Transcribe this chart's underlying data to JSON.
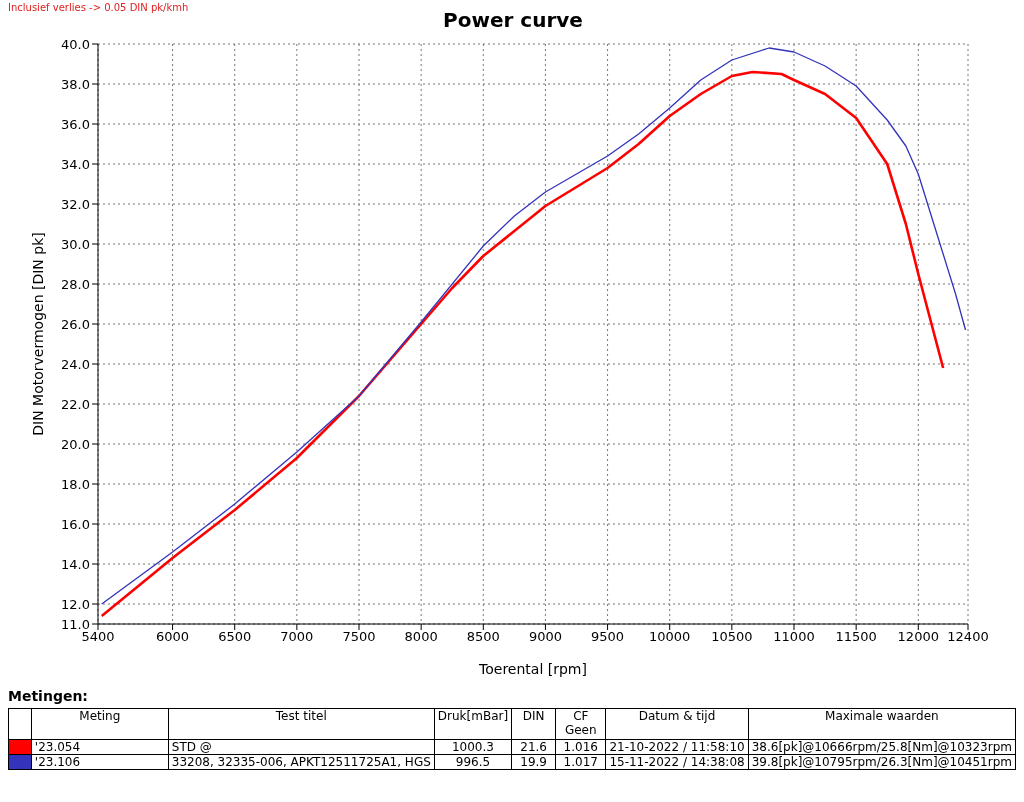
{
  "chart_data": {
    "type": "line",
    "title": "Power curve",
    "xlabel": "Toerental [rpm]",
    "ylabel": "DIN Motorvermogen [DIN pk]",
    "xlim": [
      5400,
      12400
    ],
    "xticks": [
      5400,
      6000,
      6500,
      7000,
      7500,
      8000,
      8500,
      9000,
      9500,
      10000,
      10500,
      11000,
      11500,
      12000,
      12400
    ],
    "ylim": [
      11,
      40
    ],
    "yticks": [
      {
        "value": 11,
        "label": "11.0"
      },
      {
        "value": 12,
        "label": "12.0"
      },
      {
        "value": 14,
        "label": "14.0"
      },
      {
        "value": 16,
        "label": "16.0"
      },
      {
        "value": 18,
        "label": "18.0"
      },
      {
        "value": 20,
        "label": "20.0"
      },
      {
        "value": 22,
        "label": "22.0"
      },
      {
        "value": 24,
        "label": "24.0"
      },
      {
        "value": 26,
        "label": "26.0"
      },
      {
        "value": 28,
        "label": "28.0"
      },
      {
        "value": 30,
        "label": "30.0"
      },
      {
        "value": 32,
        "label": "32.0"
      },
      {
        "value": 34,
        "label": "34.0"
      },
      {
        "value": 36,
        "label": "36.0"
      },
      {
        "value": 38,
        "label": "38.0"
      },
      {
        "value": 40,
        "label": "40.0"
      }
    ],
    "grid": true,
    "legend": "bottom",
    "marker": "none",
    "line_style": "solid",
    "series": [
      {
        "name": "'23.054",
        "color": "#ff0000",
        "x": [
          5430,
          6000,
          6500,
          7000,
          7500,
          8000,
          8250,
          8500,
          9000,
          9500,
          9750,
          10000,
          10250,
          10500,
          10666,
          10900,
          11000,
          11250,
          11500,
          11750,
          11900,
          12000,
          12200
        ],
        "values": [
          11.4,
          14.3,
          16.7,
          19.3,
          22.4,
          26.0,
          27.8,
          29.4,
          31.9,
          33.8,
          35.0,
          36.4,
          37.5,
          38.4,
          38.6,
          38.5,
          38.2,
          37.5,
          36.3,
          34.0,
          31.0,
          28.5,
          23.8
        ]
      },
      {
        "name": "'23.106",
        "color": "#3333bb",
        "x": [
          5430,
          6000,
          6500,
          7000,
          7500,
          8000,
          8500,
          8750,
          9000,
          9250,
          9500,
          9750,
          10000,
          10250,
          10500,
          10800,
          11000,
          11250,
          11500,
          11750,
          11900,
          12000,
          12150,
          12300,
          12380
        ],
        "values": [
          12.0,
          14.6,
          17.0,
          19.6,
          22.4,
          26.1,
          29.9,
          31.4,
          32.6,
          33.5,
          34.4,
          35.5,
          36.8,
          38.2,
          39.2,
          39.8,
          39.6,
          38.9,
          37.9,
          36.2,
          34.9,
          33.5,
          30.5,
          27.5,
          25.7
        ]
      }
    ],
    "annotations": [
      "Inclusief verlies -> 0.05 DIN pk/kmh",
      "Metingen:",
      "Meting",
      "Test titel",
      "Druk[mBar]",
      "DIN",
      "CF Geen",
      "Datum & tijd",
      "Maximale waarden",
      "STD   @",
      "1000.3",
      "21.6",
      "1.016",
      "21-10-2022 / 11:58:10",
      "38.6[pk]@10666rpm/25.8[Nm]@10323rpm",
      "33208, 32335-006, APKT12511725A1, HGS",
      "996.5",
      "19.9",
      "1.017",
      "15-11-2022 / 14:38:08",
      "39.8[pk]@10795rpm/26.3[Nm]@10451rpm"
    ]
  }
}
